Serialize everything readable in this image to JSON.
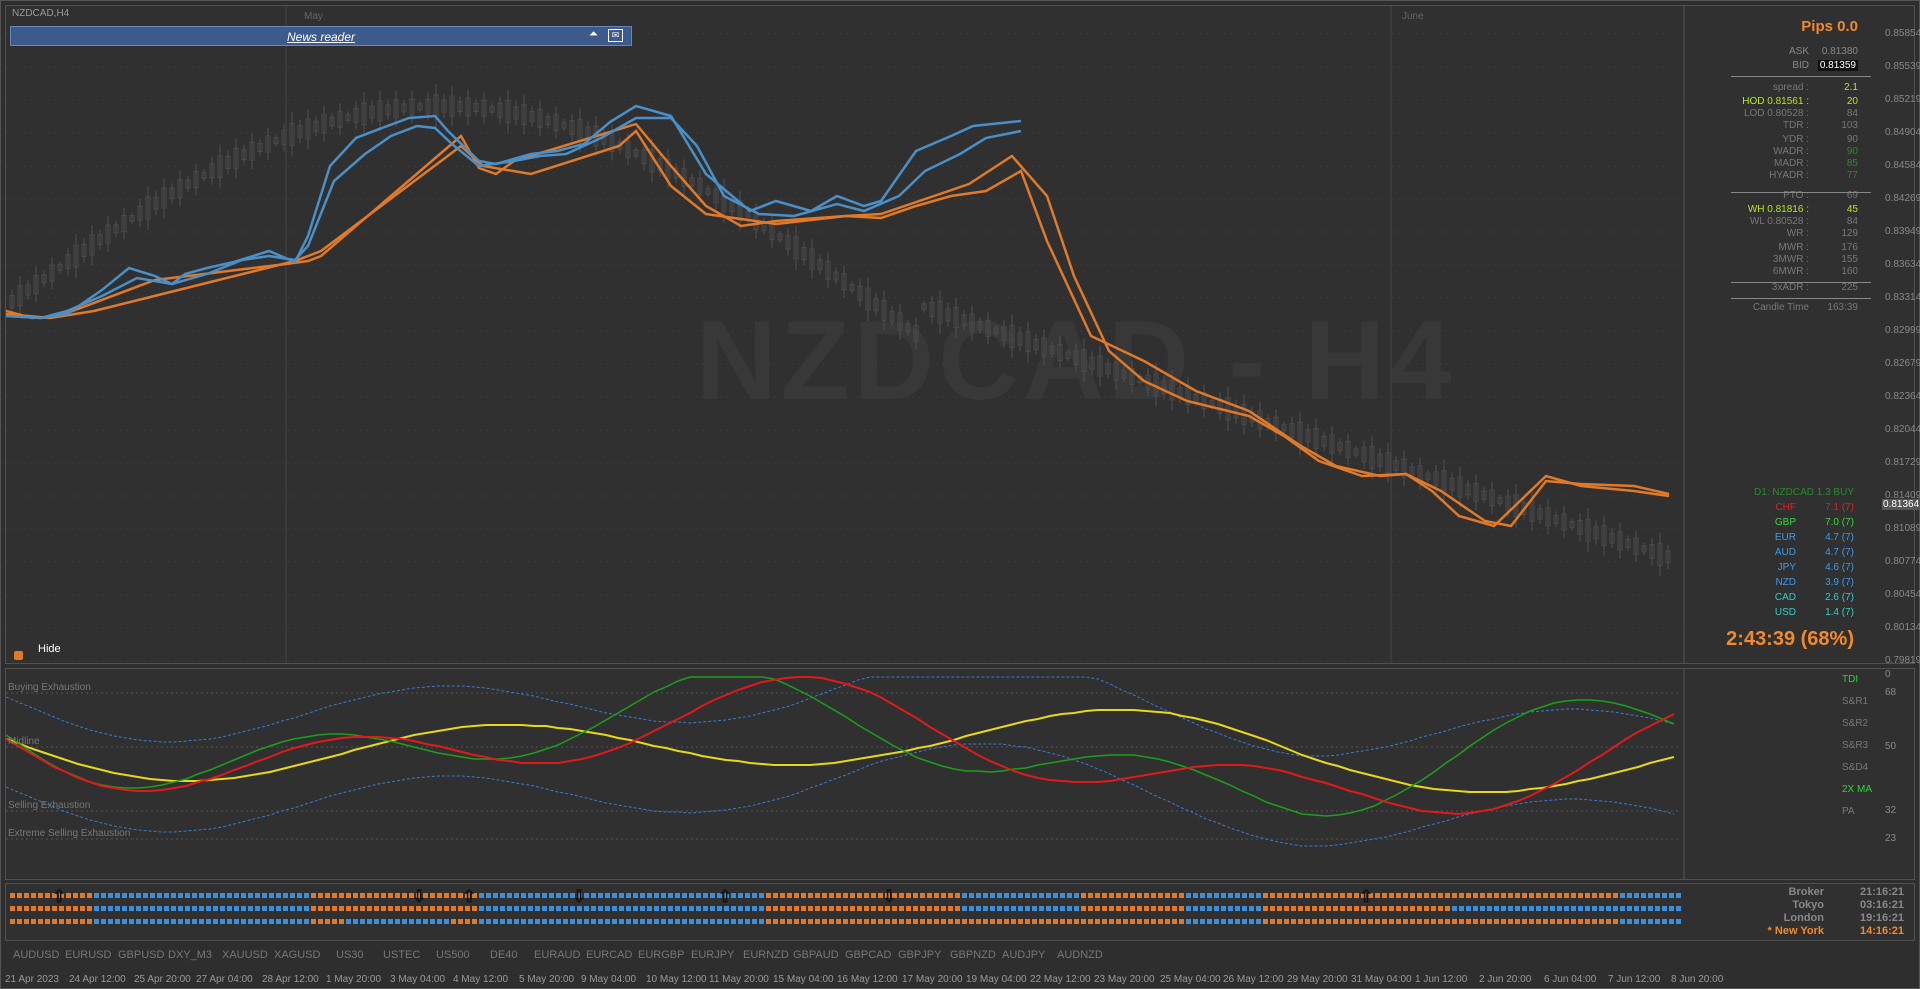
{
  "window": {
    "symbol_title": "NZDCAD,H4",
    "watermark": "NZDCAD - H4"
  },
  "news_reader": {
    "title": "News reader",
    "minimize_glyph": "⏶",
    "close_glyph": "✉"
  },
  "month_labels": [
    "May",
    "June"
  ],
  "hide_label": "Hide",
  "info_panel": {
    "pips": "Pips 0.0",
    "ask_label": "ASK",
    "ask_value": "0.81380",
    "bid_label": "BID",
    "bid_value": "0.81359",
    "spread_label": "spread :",
    "spread_value": "2.1",
    "hod_label": "HOD 0.81561 :",
    "hod_value": "20",
    "lod_label": "LOD 0.80528 :",
    "lod_value": "84",
    "tdr_label": "TDR :",
    "tdr_value": "103",
    "ydr_label": "YDR :",
    "ydr_value": "90",
    "wadr_label": "WADR :",
    "wadr_value": "90",
    "madr_label": "MADR :",
    "madr_value": "85",
    "hyadr_label": "HYADR :",
    "hyadr_value": "77",
    "pto_label": "PTO :",
    "pto_value": "69",
    "wh_label": "WH 0.81816 :",
    "wh_value": "45",
    "wl_label": "WL 0.80528 :",
    "wl_value": "84",
    "wr_label": "WR :",
    "wr_value": "129",
    "mwr_label": "MWR :",
    "mwr_value": "176",
    "mwr3_label": "3MWR :",
    "mwr3_value": "155",
    "mwr6_label": "6MWR :",
    "mwr6_value": "160",
    "adr3_label": "3xADR :",
    "adr3_value": "225",
    "candle_label": "Candle Time",
    "candle_value": "163:39",
    "countdown": "2:43:39 (68%)"
  },
  "strength": {
    "header": "D1: NZDCAD 1.3 BUY",
    "rows": [
      {
        "cur": "CHF",
        "val": "7.1 (7)",
        "color": "#e02020"
      },
      {
        "cur": "GBP",
        "val": "7.0 (7)",
        "color": "#38d838"
      },
      {
        "cur": "EUR",
        "val": "4.7 (7)",
        "color": "#3a9bea"
      },
      {
        "cur": "AUD",
        "val": "4.7 (7)",
        "color": "#3a9bea"
      },
      {
        "cur": "JPY",
        "val": "4.6 (7)",
        "color": "#3a9bea"
      },
      {
        "cur": "NZD",
        "val": "3.9 (7)",
        "color": "#3a9bea"
      },
      {
        "cur": "CAD",
        "val": "2.6 (7)",
        "color": "#33cccc"
      },
      {
        "cur": "USD",
        "val": "1.4 (7)",
        "color": "#33cccc"
      }
    ]
  },
  "price_axis": [
    "0.85854",
    "0.85539",
    "0.85219",
    "0.84904",
    "0.84584",
    "0.84269",
    "0.83949",
    "0.83634",
    "0.83314",
    "0.82999",
    "0.82679",
    "0.82364",
    "0.82044",
    "0.81729",
    "0.81409",
    "0.81089",
    "0.80774",
    "0.80454",
    "0.80134",
    "0.79819"
  ],
  "current_price": "0.81364",
  "tdi": {
    "levels": [
      {
        "label": "Buying Exhaustion",
        "value": "68"
      },
      {
        "label": "Midline",
        "value": "50"
      },
      {
        "label": "Selling Exhaustion",
        "value": "32"
      },
      {
        "label": "Extreme Selling Exhaustion",
        "value": "23"
      }
    ],
    "right_labels": [
      "TDI",
      "S&R1",
      "S&R2",
      "S&R3",
      "S&D4",
      "2X MA",
      "PA"
    ],
    "axis_labels": [
      "0",
      "68",
      "50",
      "32",
      "23"
    ]
  },
  "sessions": [
    {
      "name": "Broker",
      "time": "21:16:21",
      "active": false
    },
    {
      "name": "Tokyo",
      "time": "03:16:21",
      "active": false
    },
    {
      "name": "London",
      "time": "19:16:21",
      "active": false
    },
    {
      "name": "* New York",
      "time": "14:16:21",
      "active": true
    }
  ],
  "symbols": [
    "AUDUSD",
    "EURUSD",
    "GBPUSD",
    "DXY_M3",
    "XAUUSD",
    "XAGUSD",
    "US30",
    "USTEC",
    "US500",
    "DE40",
    "EURAUD",
    "EURCAD",
    "EURGBP",
    "EURJPY",
    "EURNZD",
    "GBPAUD",
    "GBPCAD",
    "GBPJPY",
    "GBPNZD",
    "AUDJPY",
    "AUDNZD"
  ],
  "date_axis": [
    "21 Apr 2023",
    "24 Apr 12:00",
    "25 Apr 20:00",
    "27 Apr 04:00",
    "28 Apr 12:00",
    "1 May 20:00",
    "3 May 04:00",
    "4 May 12:00",
    "5 May 20:00",
    "9 May 04:00",
    "10 May 12:00",
    "11 May 20:00",
    "15 May 04:00",
    "16 May 12:00",
    "17 May 20:00",
    "19 May 04:00",
    "22 May 12:00",
    "23 May 20:00",
    "25 May 04:00",
    "26 May 12:00",
    "29 May 20:00",
    "31 May 04:00",
    "1 Jun 12:00",
    "2 Jun 20:00",
    "6 Jun 04:00",
    "7 Jun 12:00",
    "8 Jun 20:00"
  ],
  "colors": {
    "blue_ma": "#4a8fc8",
    "orange_ma": "#e07a28",
    "tdi_green": "#1aa01a",
    "tdi_red": "#e01a1a",
    "tdi_yellow": "#e8d81a",
    "band": "#3a7ad0"
  }
}
